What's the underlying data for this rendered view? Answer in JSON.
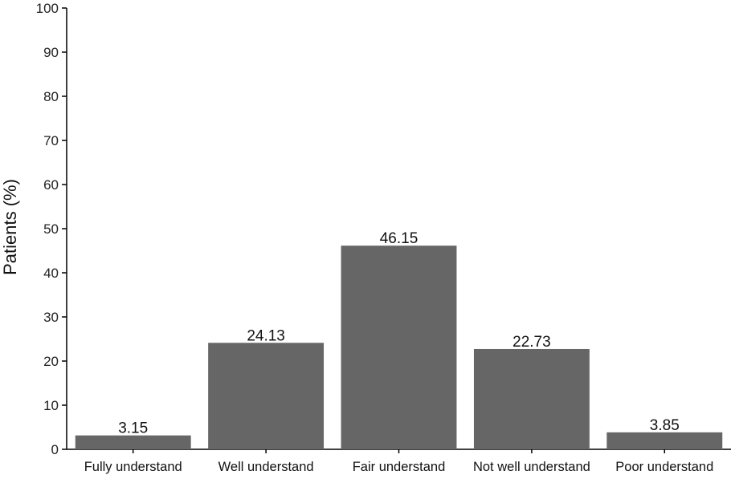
{
  "chart_data": {
    "type": "bar",
    "title": "",
    "xlabel": "",
    "ylabel": "Patients (%)",
    "ylim": [
      0,
      100
    ],
    "yticks": [
      0,
      10,
      20,
      30,
      40,
      50,
      60,
      70,
      80,
      90,
      100
    ],
    "grid": false,
    "legend": "none",
    "bar_color": "#666666",
    "categories": [
      "Fully understand",
      "Well understand",
      "Fair understand",
      "Not well understand",
      "Poor understand"
    ],
    "values": [
      3.15,
      24.13,
      46.15,
      22.73,
      3.85
    ],
    "data_labels": [
      "3.15",
      "24.13",
      "46.15",
      "22.73",
      "3.85"
    ]
  }
}
